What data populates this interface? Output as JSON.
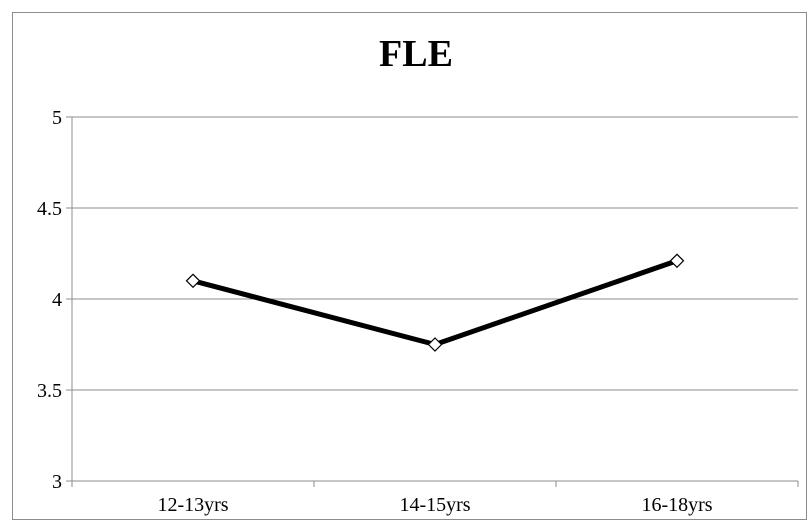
{
  "chart_data": {
    "type": "line",
    "title": "FLE",
    "xlabel": "",
    "ylabel": "",
    "categories": [
      "12-13yrs",
      "14-15yrs",
      "16-18yrs"
    ],
    "series": [
      {
        "values": [
          4.1,
          3.75,
          4.21
        ]
      }
    ],
    "ylim": [
      3,
      5
    ],
    "yticks": [
      3,
      3.5,
      4,
      4.5,
      5
    ],
    "ytick_labels": [
      "3",
      "3.5",
      "4",
      "4.5",
      "5"
    ],
    "grid": true,
    "legend": "none",
    "line_color": "#000000",
    "grid_color": "#8c8c8c",
    "marker": "diamond"
  }
}
